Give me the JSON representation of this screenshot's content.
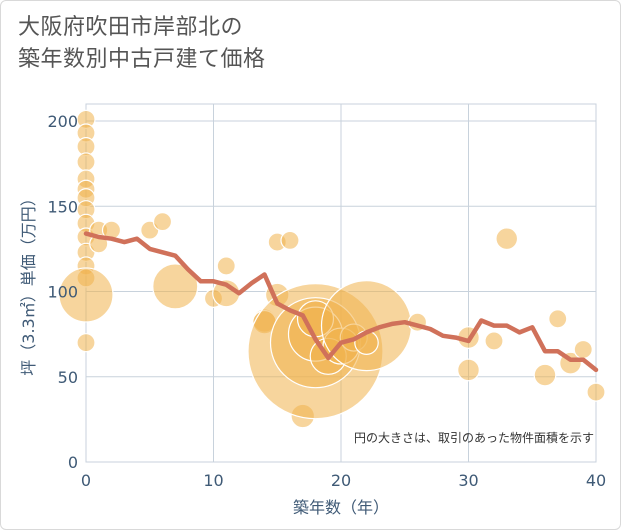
{
  "title_line1": "大阪府吹田市岸部北の",
  "title_line2": "築年数別中古戸建て価格",
  "chart_data": {
    "type": "scatter",
    "title": "大阪府吹田市岸部北の築年数別中古戸建て価格",
    "xlabel": "築年数（年）",
    "ylabel": "坪（3.3㎡）単価（万円）",
    "xlim": [
      0,
      40
    ],
    "ylim": [
      0,
      210
    ],
    "xticks": [
      0,
      10,
      20,
      30,
      40
    ],
    "yticks": [
      0,
      50,
      100,
      150,
      200
    ],
    "grid": true,
    "note": "円の大きさは、取引のあった物件面積を示す",
    "bubbles": [
      {
        "x": 0,
        "y": 201,
        "s": 1
      },
      {
        "x": 0,
        "y": 193,
        "s": 1
      },
      {
        "x": 0,
        "y": 185,
        "s": 1
      },
      {
        "x": 0,
        "y": 176,
        "s": 1
      },
      {
        "x": 0,
        "y": 166,
        "s": 1
      },
      {
        "x": 0,
        "y": 160,
        "s": 1
      },
      {
        "x": 0,
        "y": 155,
        "s": 1
      },
      {
        "x": 0,
        "y": 148,
        "s": 1
      },
      {
        "x": 0,
        "y": 140,
        "s": 1
      },
      {
        "x": 0,
        "y": 132,
        "s": 1
      },
      {
        "x": 0,
        "y": 123,
        "s": 1
      },
      {
        "x": 0,
        "y": 115,
        "s": 1
      },
      {
        "x": 0,
        "y": 108,
        "s": 1
      },
      {
        "x": 0,
        "y": 98,
        "s": 3
      },
      {
        "x": 0,
        "y": 70,
        "s": 1
      },
      {
        "x": 1,
        "y": 136,
        "s": 1
      },
      {
        "x": 1,
        "y": 128,
        "s": 1
      },
      {
        "x": 2,
        "y": 136,
        "s": 1
      },
      {
        "x": 5,
        "y": 136,
        "s": 1
      },
      {
        "x": 6,
        "y": 141,
        "s": 1
      },
      {
        "x": 7,
        "y": 103,
        "s": 2.5
      },
      {
        "x": 10,
        "y": 96,
        "s": 1
      },
      {
        "x": 11,
        "y": 115,
        "s": 1
      },
      {
        "x": 11,
        "y": 99,
        "s": 1.5
      },
      {
        "x": 14,
        "y": 83,
        "s": 1.3
      },
      {
        "x": 14,
        "y": 82,
        "s": 1.3
      },
      {
        "x": 15,
        "y": 129,
        "s": 1
      },
      {
        "x": 15,
        "y": 98,
        "s": 1.3
      },
      {
        "x": 16,
        "y": 130,
        "s": 1
      },
      {
        "x": 17,
        "y": 27,
        "s": 1.3
      },
      {
        "x": 18,
        "y": 65,
        "s": 7.5
      },
      {
        "x": 18,
        "y": 70,
        "s": 5
      },
      {
        "x": 18,
        "y": 75,
        "s": 3
      },
      {
        "x": 18,
        "y": 84,
        "s": 2
      },
      {
        "x": 19,
        "y": 62,
        "s": 2
      },
      {
        "x": 20,
        "y": 68,
        "s": 2
      },
      {
        "x": 21,
        "y": 73,
        "s": 1.5
      },
      {
        "x": 22,
        "y": 80,
        "s": 5
      },
      {
        "x": 22,
        "y": 70,
        "s": 1.3
      },
      {
        "x": 26,
        "y": 82,
        "s": 1
      },
      {
        "x": 30,
        "y": 73,
        "s": 1.2
      },
      {
        "x": 30,
        "y": 54,
        "s": 1.2
      },
      {
        "x": 32,
        "y": 71,
        "s": 1
      },
      {
        "x": 33,
        "y": 131,
        "s": 1.2
      },
      {
        "x": 36,
        "y": 51,
        "s": 1.2
      },
      {
        "x": 37,
        "y": 84,
        "s": 1
      },
      {
        "x": 38,
        "y": 58,
        "s": 1.2
      },
      {
        "x": 39,
        "y": 66,
        "s": 1
      },
      {
        "x": 40,
        "y": 41,
        "s": 1
      }
    ],
    "trend": {
      "x": [
        0,
        1,
        2,
        3,
        4,
        5,
        6,
        7,
        8,
        9,
        10,
        11,
        12,
        13,
        14,
        15,
        16,
        17,
        18,
        19,
        20,
        21,
        22,
        23,
        24,
        25,
        26,
        27,
        28,
        29,
        30,
        31,
        32,
        33,
        34,
        35,
        36,
        37,
        38,
        39,
        40
      ],
      "y": [
        134,
        132,
        131,
        129,
        131,
        125,
        123,
        121,
        113,
        106,
        106,
        104,
        99,
        105,
        110,
        93,
        89,
        86,
        72,
        61,
        70,
        72,
        76,
        79,
        81,
        82,
        80,
        78,
        74,
        73,
        71,
        83,
        80,
        80,
        76,
        79,
        65,
        65,
        60,
        60,
        54
      ]
    }
  }
}
